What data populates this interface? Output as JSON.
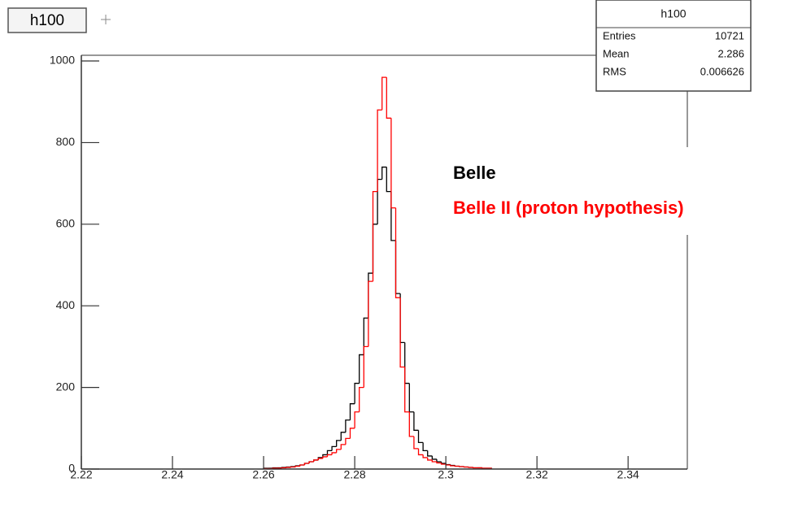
{
  "chart_data": {
    "type": "histogram",
    "title": "h100",
    "xlim": [
      2.22,
      2.353
    ],
    "ylim": [
      0,
      1014
    ],
    "xticks": [
      2.22,
      2.24,
      2.26,
      2.28,
      2.3,
      2.32,
      2.34
    ],
    "yticks": [
      0,
      200,
      400,
      600,
      800,
      1000
    ],
    "bins": [
      2.26,
      2.261,
      2.262,
      2.263,
      2.264,
      2.265,
      2.266,
      2.267,
      2.268,
      2.269,
      2.27,
      2.271,
      2.272,
      2.273,
      2.274,
      2.275,
      2.276,
      2.277,
      2.278,
      2.279,
      2.28,
      2.281,
      2.282,
      2.283,
      2.284,
      2.285,
      2.286,
      2.287,
      2.288,
      2.289,
      2.29,
      2.291,
      2.292,
      2.293,
      2.294,
      2.295,
      2.296,
      2.297,
      2.298,
      2.299,
      2.3,
      2.301,
      2.302,
      2.303,
      2.304,
      2.305,
      2.306,
      2.307,
      2.308,
      2.309,
      2.31
    ],
    "series": [
      {
        "name": "Belle",
        "color": "#000000",
        "values": [
          2,
          2,
          3,
          3,
          4,
          5,
          6,
          8,
          10,
          14,
          18,
          22,
          28,
          35,
          45,
          55,
          70,
          90,
          120,
          160,
          210,
          280,
          370,
          480,
          600,
          710,
          740,
          680,
          560,
          430,
          310,
          210,
          140,
          95,
          65,
          45,
          32,
          24,
          18,
          14,
          11,
          9,
          7,
          6,
          5,
          4,
          3,
          3,
          2,
          2
        ]
      },
      {
        "name": "Belle II (proton hypothesis)",
        "color": "#ff0000",
        "values": [
          1,
          1,
          2,
          2,
          3,
          4,
          5,
          7,
          10,
          14,
          18,
          22,
          26,
          30,
          35,
          40,
          48,
          60,
          75,
          100,
          140,
          200,
          300,
          460,
          680,
          880,
          960,
          860,
          640,
          420,
          250,
          140,
          80,
          50,
          35,
          28,
          22,
          18,
          15,
          12,
          10,
          8,
          7,
          6,
          5,
          4,
          3,
          3,
          2,
          2
        ]
      }
    ],
    "stats": {
      "title": "h100",
      "rows": [
        [
          "Entries",
          10721
        ],
        [
          "Mean",
          2.286
        ],
        [
          "RMS",
          0.006626
        ]
      ]
    }
  }
}
